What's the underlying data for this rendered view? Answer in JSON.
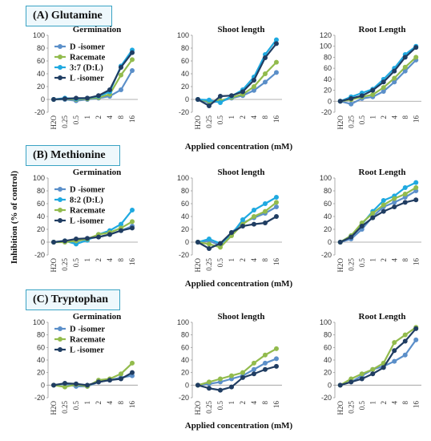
{
  "panels": [
    {
      "label": "(A) Glutamine",
      "xlabel": "Applied concentration (mM)"
    },
    {
      "label": "(B) Methionine",
      "xlabel": "Applied concentration (mM)"
    },
    {
      "label": "(C) Tryptophan",
      "xlabel": "Applied concentration (mM)"
    }
  ],
  "ylabel": "Inhibition (% of control)",
  "chart_data": [
    {
      "type": "line",
      "title": "Germination",
      "panel": "(A) Glutamine",
      "categories": [
        "H2O",
        "0.25",
        "0.5",
        "1",
        "2",
        "4",
        "8",
        "16"
      ],
      "ylim": [
        -20,
        100
      ],
      "yticks": [
        -20,
        0,
        20,
        40,
        60,
        80,
        100
      ],
      "legend": "top-right",
      "series": [
        {
          "name": "D -isomer",
          "color": "#5b8fc9",
          "values": [
            0,
            0,
            -2,
            0,
            2,
            5,
            15,
            45
          ]
        },
        {
          "name": "Racemate",
          "color": "#92bb4d",
          "values": [
            0,
            1,
            0,
            1,
            3,
            8,
            38,
            62
          ]
        },
        {
          "name": "3:7 (D:L)",
          "color": "#1fa9e0",
          "values": [
            0,
            2,
            1,
            2,
            5,
            12,
            52,
            77
          ]
        },
        {
          "name": "L -isomer",
          "color": "#203d62",
          "values": [
            0,
            1,
            2,
            2,
            6,
            15,
            50,
            73
          ]
        }
      ]
    },
    {
      "type": "line",
      "title": "Shoot length",
      "panel": "(A) Glutamine",
      "categories": [
        "H2O",
        "0.25",
        "0.5",
        "1",
        "2",
        "4",
        "8",
        "16"
      ],
      "ylim": [
        -20,
        100
      ],
      "yticks": [
        -20,
        0,
        20,
        40,
        60,
        80,
        100
      ],
      "series": [
        {
          "name": "D -isomer",
          "color": "#5b8fc9",
          "values": [
            0,
            -5,
            -3,
            2,
            6,
            14,
            27,
            42
          ]
        },
        {
          "name": "Racemate",
          "color": "#92bb4d",
          "values": [
            0,
            -3,
            -2,
            3,
            8,
            20,
            40,
            58
          ]
        },
        {
          "name": "3:7 (D:L)",
          "color": "#1fa9e0",
          "values": [
            0,
            -1,
            -5,
            5,
            15,
            35,
            70,
            93
          ]
        },
        {
          "name": "L -isomer",
          "color": "#203d62",
          "values": [
            0,
            -10,
            5,
            6,
            12,
            30,
            65,
            87
          ]
        }
      ]
    },
    {
      "type": "line",
      "title": "Root Length",
      "panel": "(A) Glutamine",
      "categories": [
        "H2O",
        "0.25",
        "0.5",
        "1",
        "2",
        "4",
        "8",
        "16"
      ],
      "ylim": [
        -20,
        120
      ],
      "yticks": [
        -20,
        0,
        20,
        40,
        60,
        80,
        100,
        120
      ],
      "series": [
        {
          "name": "D -isomer",
          "color": "#5b8fc9",
          "values": [
            0,
            -5,
            5,
            8,
            18,
            35,
            55,
            75
          ]
        },
        {
          "name": "Racemate",
          "color": "#92bb4d",
          "values": [
            0,
            3,
            8,
            12,
            25,
            42,
            62,
            80
          ]
        },
        {
          "name": "3:7 (D:L)",
          "color": "#1fa9e0",
          "values": [
            0,
            8,
            15,
            22,
            40,
            60,
            85,
            100
          ]
        },
        {
          "name": "L -isomer",
          "color": "#203d62",
          "values": [
            0,
            5,
            10,
            20,
            35,
            55,
            80,
            98
          ]
        }
      ]
    },
    {
      "type": "line",
      "title": "Germination",
      "panel": "(B) Methionine",
      "categories": [
        "H2O",
        "0.25",
        "0.5",
        "1",
        "2",
        "4",
        "8",
        "16"
      ],
      "ylim": [
        -20,
        100
      ],
      "yticks": [
        -20,
        0,
        20,
        40,
        60,
        80,
        100
      ],
      "legend": "top-right",
      "series": [
        {
          "name": "D -isomer",
          "color": "#5b8fc9",
          "values": [
            0,
            1,
            1,
            5,
            8,
            12,
            18,
            25
          ]
        },
        {
          "name": "8:2 (D:L)",
          "color": "#1fa9e0",
          "values": [
            0,
            2,
            -3,
            3,
            12,
            18,
            28,
            50
          ]
        },
        {
          "name": "Racemate",
          "color": "#92bb4d",
          "values": [
            0,
            0,
            2,
            5,
            12,
            15,
            22,
            32
          ]
        },
        {
          "name": "L -isomer",
          "color": "#203d62",
          "values": [
            0,
            2,
            5,
            6,
            8,
            12,
            18,
            22
          ]
        }
      ]
    },
    {
      "type": "line",
      "title": "Shoot length",
      "panel": "(B) Methionine",
      "categories": [
        "H2O",
        "0.25",
        "0.5",
        "1",
        "2",
        "4",
        "8",
        "16"
      ],
      "ylim": [
        -20,
        100
      ],
      "yticks": [
        -20,
        0,
        20,
        40,
        60,
        80,
        100
      ],
      "series": [
        {
          "name": "D -isomer",
          "color": "#5b8fc9",
          "values": [
            0,
            2,
            -5,
            15,
            30,
            38,
            45,
            55
          ]
        },
        {
          "name": "8:2 (D:L)",
          "color": "#1fa9e0",
          "values": [
            0,
            5,
            -2,
            12,
            35,
            50,
            60,
            70
          ]
        },
        {
          "name": "Racemate",
          "color": "#92bb4d",
          "values": [
            0,
            -3,
            -8,
            10,
            28,
            40,
            48,
            62
          ]
        },
        {
          "name": "L -isomer",
          "color": "#203d62",
          "values": [
            0,
            -10,
            -2,
            15,
            25,
            28,
            30,
            40
          ]
        }
      ]
    },
    {
      "type": "line",
      "title": "Root Length",
      "panel": "(B) Methionine",
      "categories": [
        "H2O",
        "0.25",
        "0.5",
        "1",
        "2",
        "4",
        "8",
        "16"
      ],
      "ylim": [
        -20,
        100
      ],
      "yticks": [
        -20,
        0,
        20,
        40,
        60,
        80,
        100
      ],
      "series": [
        {
          "name": "D -isomer",
          "color": "#5b8fc9",
          "values": [
            0,
            5,
            20,
            40,
            55,
            62,
            70,
            80
          ]
        },
        {
          "name": "8:2 (D:L)",
          "color": "#1fa9e0",
          "values": [
            0,
            10,
            28,
            48,
            65,
            72,
            85,
            93
          ]
        },
        {
          "name": "Racemate",
          "color": "#92bb4d",
          "values": [
            0,
            10,
            30,
            45,
            58,
            68,
            75,
            85
          ]
        },
        {
          "name": "L -isomer",
          "color": "#203d62",
          "values": [
            0,
            8,
            25,
            38,
            48,
            55,
            62,
            66
          ]
        }
      ]
    },
    {
      "type": "line",
      "title": "Germination",
      "panel": "(C) Tryptophan",
      "categories": [
        "H2O",
        "0.25",
        "0.5",
        "1",
        "2",
        "4",
        "8",
        "16"
      ],
      "ylim": [
        -20,
        100
      ],
      "yticks": [
        -20,
        0,
        20,
        40,
        60,
        80,
        100
      ],
      "legend": "top-right",
      "series": [
        {
          "name": "D -isomer",
          "color": "#5b8fc9",
          "values": [
            0,
            2,
            -2,
            -2,
            5,
            8,
            12,
            15
          ]
        },
        {
          "name": "Racemate",
          "color": "#92bb4d",
          "values": [
            0,
            -3,
            1,
            -2,
            8,
            10,
            18,
            35
          ]
        },
        {
          "name": "L -isomer",
          "color": "#203d62",
          "values": [
            0,
            3,
            2,
            0,
            5,
            8,
            10,
            20
          ]
        }
      ]
    },
    {
      "type": "line",
      "title": "Shoot length",
      "panel": "(C) Tryptophan",
      "categories": [
        "H2O",
        "0.25",
        "0.5",
        "1",
        "2",
        "4",
        "8",
        "16"
      ],
      "ylim": [
        -20,
        100
      ],
      "yticks": [
        -20,
        0,
        20,
        40,
        60,
        80,
        100
      ],
      "series": [
        {
          "name": "D -isomer",
          "color": "#5b8fc9",
          "values": [
            0,
            2,
            5,
            10,
            15,
            25,
            35,
            42
          ]
        },
        {
          "name": "Racemate",
          "color": "#92bb4d",
          "values": [
            0,
            5,
            10,
            15,
            20,
            35,
            48,
            58
          ]
        },
        {
          "name": "L -isomer",
          "color": "#203d62",
          "values": [
            0,
            -5,
            -8,
            -3,
            12,
            18,
            25,
            30
          ]
        }
      ]
    },
    {
      "type": "line",
      "title": "Root Length",
      "panel": "(C) Tryptophan",
      "categories": [
        "H2O",
        "0.25",
        "0.5",
        "1",
        "2",
        "4",
        "8",
        "16"
      ],
      "ylim": [
        -20,
        100
      ],
      "yticks": [
        -20,
        0,
        20,
        40,
        60,
        80,
        100
      ],
      "series": [
        {
          "name": "D -isomer",
          "color": "#5b8fc9",
          "values": [
            0,
            5,
            15,
            25,
            30,
            38,
            48,
            72
          ]
        },
        {
          "name": "Racemate",
          "color": "#92bb4d",
          "values": [
            0,
            10,
            18,
            25,
            35,
            68,
            80,
            92
          ]
        },
        {
          "name": "L -isomer",
          "color": "#203d62",
          "values": [
            0,
            5,
            10,
            18,
            28,
            55,
            70,
            90
          ]
        }
      ]
    }
  ]
}
